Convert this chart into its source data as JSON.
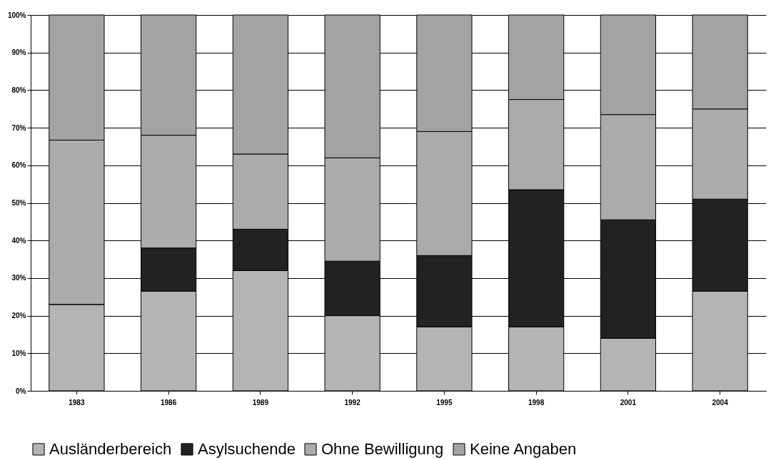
{
  "chart_data": {
    "type": "bar",
    "stacked": true,
    "categories": [
      "1983",
      "1986",
      "1989",
      "1992",
      "1995",
      "1998",
      "2001",
      "2004"
    ],
    "series": [
      {
        "name": "Ausländerbereich",
        "color": "#b4b4b4",
        "values": [
          23,
          26.5,
          32,
          20,
          17,
          17,
          14,
          26.5
        ]
      },
      {
        "name": "Asylsuchende",
        "color": "#222222",
        "values": [
          0,
          11.5,
          11,
          14.5,
          19,
          36.5,
          31.5,
          24.5
        ]
      },
      {
        "name": "Ohne Bewilligung",
        "color": "#ababab",
        "values": [
          43.7,
          30,
          20,
          27.5,
          33,
          24,
          28,
          24
        ]
      },
      {
        "name": "Keine Angaben",
        "color": "#a3a3a3",
        "values": [
          33.3,
          32,
          37,
          38,
          31,
          22.5,
          26.5,
          25
        ]
      }
    ],
    "ylim": [
      0,
      100
    ],
    "yticks": [
      {
        "value": 0,
        "label": "0%"
      },
      {
        "value": 10,
        "label": "10%"
      },
      {
        "value": 20,
        "label": "20%"
      },
      {
        "value": 30,
        "label": "30%"
      },
      {
        "value": 40,
        "label": "40%"
      },
      {
        "value": 50,
        "label": "50%"
      },
      {
        "value": 60,
        "label": "60%"
      },
      {
        "value": 70,
        "label": "70%"
      },
      {
        "value": 80,
        "label": "80%"
      },
      {
        "value": 90,
        "label": "90%"
      },
      {
        "value": 100,
        "label": "100%"
      }
    ],
    "grid": "y",
    "legend": "bottom"
  }
}
